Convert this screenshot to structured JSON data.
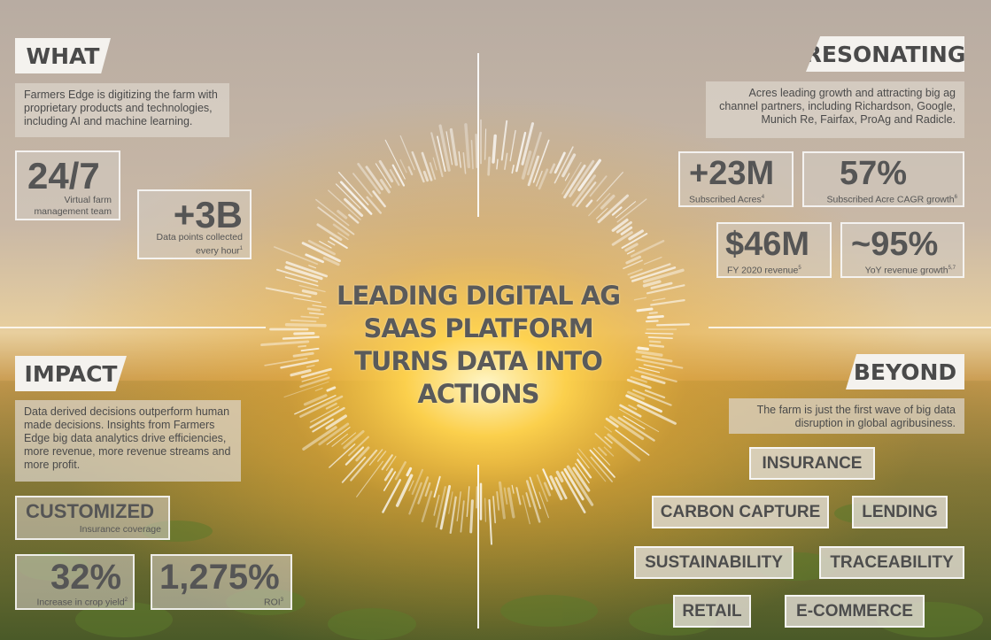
{
  "what": {
    "heading": "WHAT",
    "text": "Farmers Edge is digitizing the farm with proprietary products and technologies, including AI and machine learning.",
    "stats": [
      {
        "value": "24/7",
        "caption": "Virtual farm management team"
      },
      {
        "value": "+3B",
        "caption": "Data points collected every hour",
        "footnote": "1"
      }
    ]
  },
  "resonating": {
    "heading": "RESONATING",
    "text": "Acres leading growth and attracting big ag channel partners, including Richardson, Google, Munich Re, Fairfax, ProAg and Radicle.",
    "stats": [
      {
        "value": "+23M",
        "caption": "Subscribed Acres",
        "footnote": "4"
      },
      {
        "value": "57%",
        "caption": "Subscribed Acre CAGR growth",
        "footnote": "6"
      },
      {
        "value": "$46M",
        "caption": "FY 2020 revenue",
        "footnote": "5"
      },
      {
        "value": "~95%",
        "caption": "YoY revenue growth",
        "footnote": "5,7"
      }
    ]
  },
  "impact": {
    "heading": "IMPACT",
    "text": "Data derived decisions outperform human made decisions. Insights from Farmers Edge big data analytics drive efficiencies, more revenue, more revenue streams and more profit.",
    "stats": [
      {
        "value": "CUSTOMIZED",
        "caption": "Insurance coverage"
      },
      {
        "value": "32%",
        "caption": "Increase in crop yield",
        "footnote": "2"
      },
      {
        "value": "1,275%",
        "caption": "ROI",
        "footnote": "3"
      }
    ]
  },
  "beyond": {
    "heading": "BEYOND",
    "text": "The farm is just the first wave of big data disruption in global agribusiness.",
    "tags": [
      "INSURANCE",
      "CARBON CAPTURE",
      "LENDING",
      "SUSTAINABILITY",
      "TRACEABILITY",
      "RETAIL",
      "E-COMMERCE"
    ]
  },
  "center": {
    "line1": "LEADING DIGITAL AG",
    "line2": "SAAS PLATFORM",
    "line3": "TURNS DATA INTO ACTIONS"
  },
  "colors": {
    "heading_bg": "#f4f2ee",
    "text": "#4a4a4a",
    "sun": "#ffd34d"
  }
}
